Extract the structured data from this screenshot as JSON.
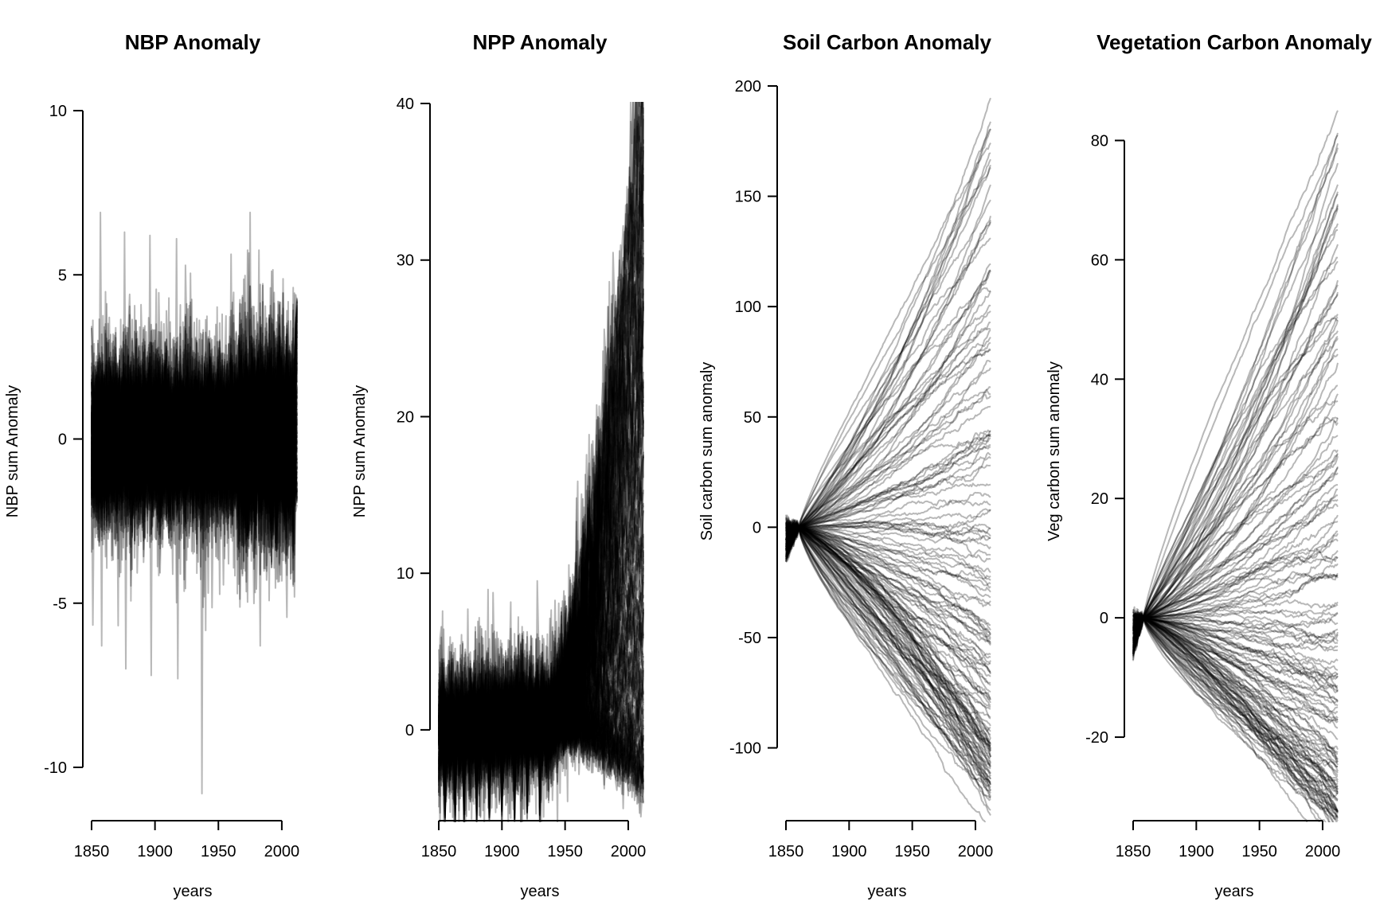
{
  "chart_data": [
    {
      "type": "line",
      "title": "NBP Anomaly",
      "xlabel": "years",
      "ylabel": "NBP sum Anomaly",
      "xlim": [
        1850,
        2012
      ],
      "ylim": [
        -10.8,
        10
      ],
      "xticks": [
        1850,
        1900,
        1950,
        2000
      ],
      "yticks": [
        -10,
        -5,
        0,
        5,
        10
      ],
      "ytick_labels": [
        "-10",
        "-5",
        "0",
        "5",
        "10"
      ],
      "grid": false,
      "legend": "none",
      "ensemble": {
        "members": 150,
        "kind": "noise",
        "base_amplitude": 1.1,
        "outlier_spikes": [
          {
            "year": 1857,
            "value": 6.9
          },
          {
            "year": 1858,
            "value": -6.3
          },
          {
            "year": 1876,
            "value": 6.3
          },
          {
            "year": 1877,
            "value": -7.0
          },
          {
            "year": 1896,
            "value": 6.2
          },
          {
            "year": 1897,
            "value": -7.2
          },
          {
            "year": 1917,
            "value": 6.1
          },
          {
            "year": 1918,
            "value": -7.3
          },
          {
            "year": 1937,
            "value": -10.8
          },
          {
            "year": 1975,
            "value": 6.9
          },
          {
            "year": 1983,
            "value": -6.3
          }
        ],
        "final_range": [
          -2.0,
          4.3
        ],
        "color": "#000000"
      }
    },
    {
      "type": "line",
      "title": "NPP Anomaly",
      "xlabel": "years",
      "ylabel": "NPP sum Anomaly",
      "xlim": [
        1850,
        2012
      ],
      "ylim": [
        -5.8,
        40
      ],
      "xticks": [
        1850,
        1900,
        1950,
        2000
      ],
      "yticks": [
        0,
        10,
        20,
        30,
        40
      ],
      "ytick_labels": [
        "0",
        "10",
        "20",
        "30",
        "40"
      ],
      "grid": false,
      "legend": "none",
      "ensemble": {
        "members": 150,
        "kind": "growth",
        "final_range": [
          -4.2,
          41.9
        ],
        "onset_year": 1935,
        "noise_amplitude": 1.2,
        "low_spikes_year": [
          1855,
          1863,
          1870,
          1880,
          1890,
          1900,
          1910,
          1920,
          1930
        ],
        "color": "#000000"
      }
    },
    {
      "type": "line",
      "title": "Soil Carbon Anomaly",
      "xlabel": "years",
      "ylabel": "Soil carbon sum anomaly",
      "xlim": [
        1850,
        2012
      ],
      "ylim": [
        -133,
        200
      ],
      "xticks": [
        1850,
        1900,
        1950,
        2000
      ],
      "yticks": [
        -100,
        -50,
        0,
        50,
        100,
        150,
        200
      ],
      "ytick_labels": [
        "-100",
        "-50",
        "0",
        "50",
        "100",
        "150",
        "200"
      ],
      "grid": false,
      "legend": "none",
      "ensemble": {
        "members": 150,
        "kind": "divergent",
        "pivot_year": 1860,
        "start_range": [
          -16,
          4
        ],
        "final_range": [
          -119,
          189
        ],
        "color": "#000000"
      }
    },
    {
      "type": "line",
      "title": "Vegetation Carbon Anomaly",
      "xlabel": "years",
      "ylabel": "Veg carbon sum anomaly",
      "xlim": [
        1850,
        2012
      ],
      "ylim": [
        -34,
        85
      ],
      "xticks": [
        1850,
        1900,
        1950,
        2000
      ],
      "yticks": [
        -20,
        0,
        20,
        40,
        60,
        80
      ],
      "ytick_labels": [
        "-20",
        "0",
        "20",
        "40",
        "60",
        "80"
      ],
      "grid": false,
      "legend": "none",
      "ensemble": {
        "members": 150,
        "kind": "divergent",
        "pivot_year": 1858,
        "start_range": [
          -7,
          1
        ],
        "final_range": [
          -34,
          85
        ],
        "color": "#000000"
      }
    }
  ]
}
